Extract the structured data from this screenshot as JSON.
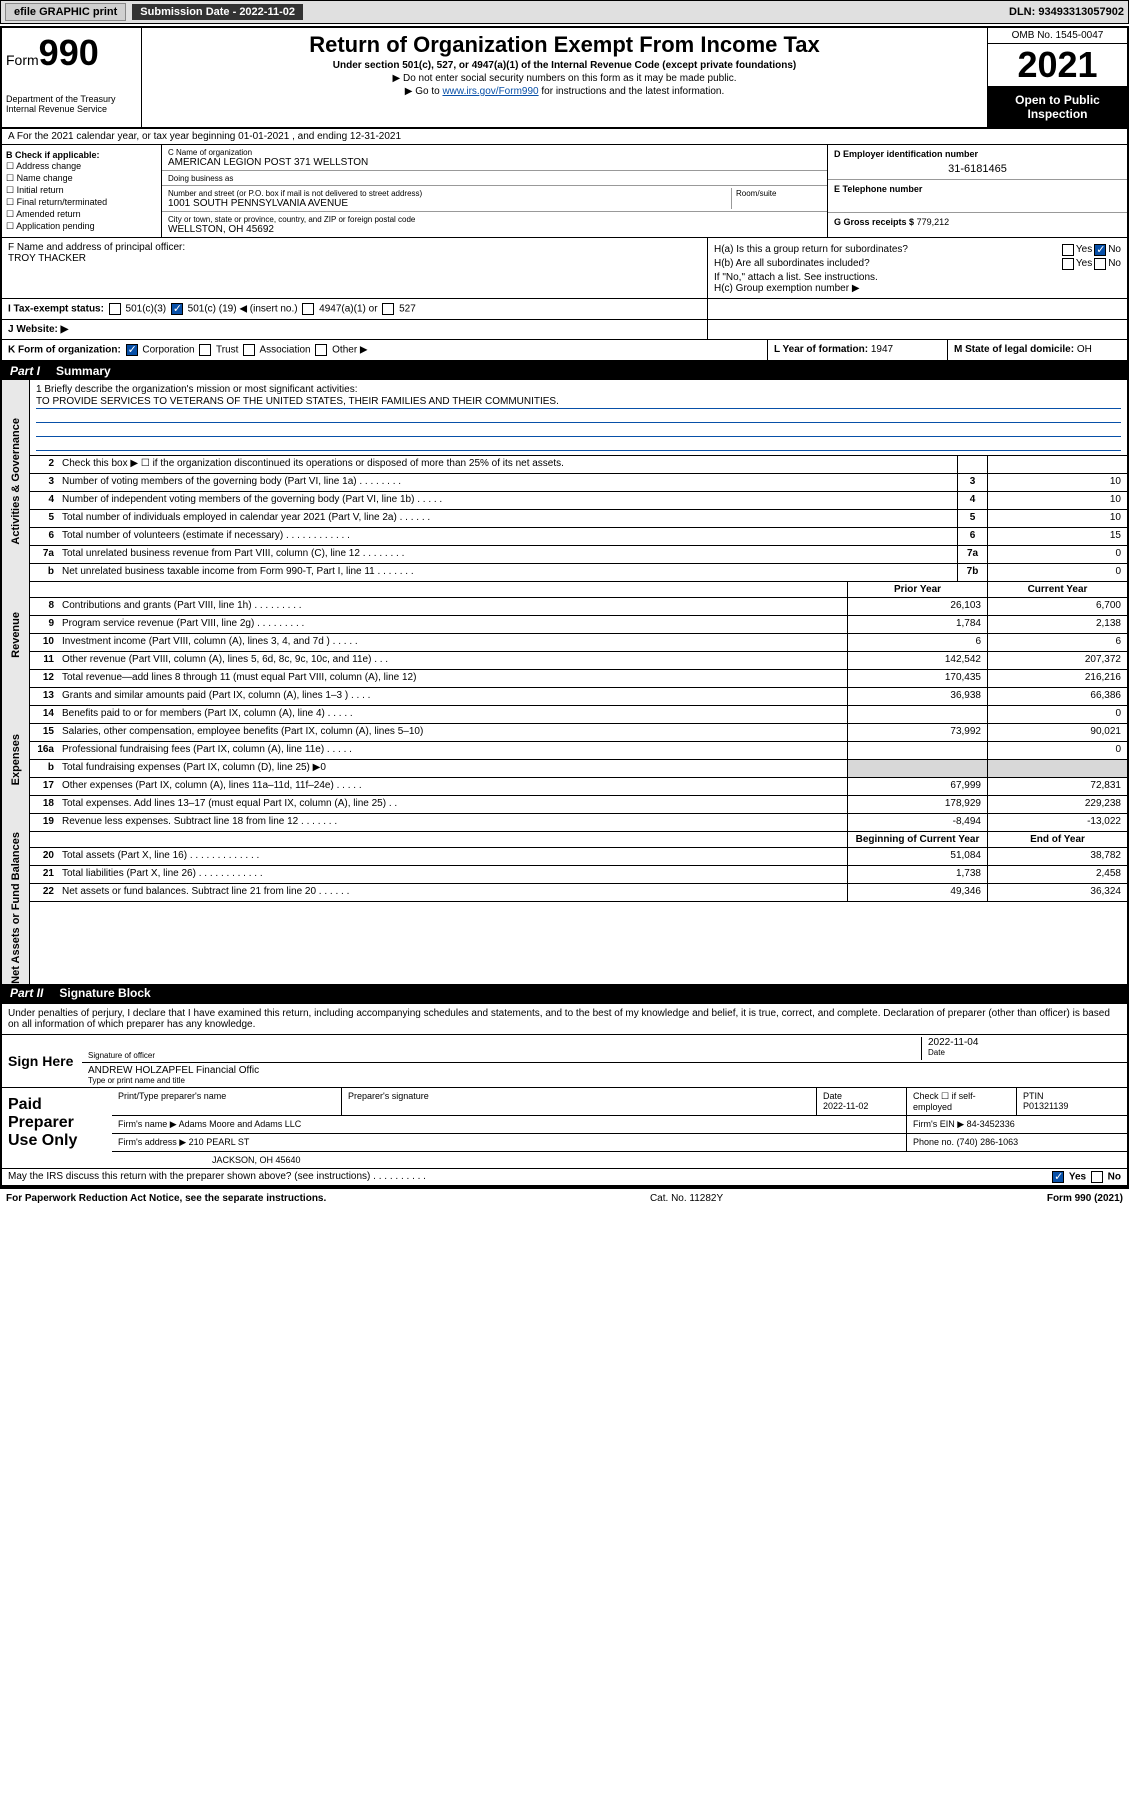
{
  "topbar": {
    "efile": "efile GRAPHIC print",
    "sub_label": "Submission Date - 2022-11-02",
    "dln": "DLN: 93493313057902"
  },
  "header": {
    "form_word": "Form",
    "form_num": "990",
    "dept": "Department of the Treasury",
    "irs": "Internal Revenue Service",
    "title": "Return of Organization Exempt From Income Tax",
    "subtitle": "Under section 501(c), 527, or 4947(a)(1) of the Internal Revenue Code (except private foundations)",
    "note1": "▶ Do not enter social security numbers on this form as it may be made public.",
    "note2_pre": "▶ Go to ",
    "note2_link": "www.irs.gov/Form990",
    "note2_post": " for instructions and the latest information.",
    "omb": "OMB No. 1545-0047",
    "year": "2021",
    "open": "Open to Public Inspection"
  },
  "a_line": "A For the 2021 calendar year, or tax year beginning 01-01-2021   , and ending 12-31-2021",
  "b": {
    "hdr": "B Check if applicable:",
    "items": [
      "Address change",
      "Name change",
      "Initial return",
      "Final return/terminated",
      "Amended return",
      "Application pending"
    ]
  },
  "c": {
    "name_lbl": "C Name of organization",
    "name": "AMERICAN LEGION POST 371 WELLSTON",
    "dba_lbl": "Doing business as",
    "addr_lbl": "Number and street (or P.O. box if mail is not delivered to street address)",
    "room_lbl": "Room/suite",
    "addr": "1001 SOUTH PENNSYLVANIA AVENUE",
    "city_lbl": "City or town, state or province, country, and ZIP or foreign postal code",
    "city": "WELLSTON, OH  45692"
  },
  "d": {
    "ein_lbl": "D Employer identification number",
    "ein": "31-6181465",
    "tel_lbl": "E Telephone number",
    "gross_lbl": "G Gross receipts $",
    "gross": "779,212"
  },
  "f": {
    "lbl": "F Name and address of principal officer:",
    "name": "TROY THACKER"
  },
  "h": {
    "a": "H(a)  Is this a group return for subordinates?",
    "b": "H(b)  Are all subordinates included?",
    "b_note": "If \"No,\" attach a list. See instructions.",
    "c": "H(c)  Group exemption number ▶",
    "yes": "Yes",
    "no": "No"
  },
  "i": {
    "lbl": "I   Tax-exempt status:",
    "o1": "501(c)(3)",
    "o2_pre": "501(c) (",
    "o2_num": "19",
    "o2_post": ") ◀ (insert no.)",
    "o3": "4947(a)(1) or",
    "o4": "527"
  },
  "j": {
    "lbl": "J   Website: ▶"
  },
  "k": {
    "lbl": "K Form of organization:",
    "o1": "Corporation",
    "o2": "Trust",
    "o3": "Association",
    "o4": "Other ▶",
    "l_lbl": "L Year of formation:",
    "l_val": "1947",
    "m_lbl": "M State of legal domicile:",
    "m_val": "OH"
  },
  "part1": {
    "num": "Part I",
    "title": "Summary"
  },
  "mission": {
    "prompt": "1   Briefly describe the organization's mission or most significant activities:",
    "text": "TO PROVIDE SERVICES TO VETERANS OF THE UNITED STATES, THEIR FAMILIES AND THEIR COMMUNITIES."
  },
  "side": {
    "gov": "Activities & Governance",
    "rev": "Revenue",
    "exp": "Expenses",
    "net": "Net Assets or Fund Balances"
  },
  "gov_lines": [
    {
      "n": "2",
      "d": "Check this box ▶ ☐  if the organization discontinued its operations or disposed of more than 25% of its net assets.",
      "box": "",
      "a1": "",
      "a2": ""
    },
    {
      "n": "3",
      "d": "Number of voting members of the governing body (Part VI, line 1a)   .    .    .    .    .    .    .    .",
      "box": "3",
      "a1": "",
      "a2": "10"
    },
    {
      "n": "4",
      "d": "Number of independent voting members of the governing body (Part VI, line 1b)   .    .    .    .    .",
      "box": "4",
      "a1": "",
      "a2": "10"
    },
    {
      "n": "5",
      "d": "Total number of individuals employed in calendar year 2021 (Part V, line 2a)   .    .    .    .    .    .",
      "box": "5",
      "a1": "",
      "a2": "10"
    },
    {
      "n": "6",
      "d": "Total number of volunteers (estimate if necessary)   .    .    .    .    .    .    .    .    .    .    .    .",
      "box": "6",
      "a1": "",
      "a2": "15"
    },
    {
      "n": "7a",
      "d": "Total unrelated business revenue from Part VIII, column (C), line 12   .    .    .    .    .    .    .    .",
      "box": "7a",
      "a1": "",
      "a2": "0"
    },
    {
      "n": "b",
      "d": "Net unrelated business taxable income from Form 990-T, Part I, line 11   .    .    .    .    .    .    .",
      "box": "7b",
      "a1": "",
      "a2": "0"
    }
  ],
  "col_hdrs": {
    "prior": "Prior Year",
    "current": "Current Year"
  },
  "rev_lines": [
    {
      "n": "8",
      "d": "Contributions and grants (Part VIII, line 1h)   .    .    .    .    .    .    .    .    .",
      "a1": "26,103",
      "a2": "6,700"
    },
    {
      "n": "9",
      "d": "Program service revenue (Part VIII, line 2g)   .    .    .    .    .    .    .    .    .",
      "a1": "1,784",
      "a2": "2,138"
    },
    {
      "n": "10",
      "d": "Investment income (Part VIII, column (A), lines 3, 4, and 7d )   .    .    .    .    .",
      "a1": "6",
      "a2": "6"
    },
    {
      "n": "11",
      "d": "Other revenue (Part VIII, column (A), lines 5, 6d, 8c, 9c, 10c, and 11e)   .    .    .",
      "a1": "142,542",
      "a2": "207,372"
    },
    {
      "n": "12",
      "d": "Total revenue—add lines 8 through 11 (must equal Part VIII, column (A), line 12)",
      "a1": "170,435",
      "a2": "216,216"
    }
  ],
  "exp_lines": [
    {
      "n": "13",
      "d": "Grants and similar amounts paid (Part IX, column (A), lines 1–3 )   .    .    .    .",
      "a1": "36,938",
      "a2": "66,386"
    },
    {
      "n": "14",
      "d": "Benefits paid to or for members (Part IX, column (A), line 4)   .    .    .    .    .",
      "a1": "",
      "a2": "0"
    },
    {
      "n": "15",
      "d": "Salaries, other compensation, employee benefits (Part IX, column (A), lines 5–10)",
      "a1": "73,992",
      "a2": "90,021"
    },
    {
      "n": "16a",
      "d": "Professional fundraising fees (Part IX, column (A), line 11e)   .    .    .    .    .",
      "a1": "",
      "a2": "0"
    },
    {
      "n": "b",
      "d": "Total fundraising expenses (Part IX, column (D), line 25) ▶0",
      "a1": "shade",
      "a2": "shade"
    },
    {
      "n": "17",
      "d": "Other expenses (Part IX, column (A), lines 11a–11d, 11f–24e)   .    .    .    .    .",
      "a1": "67,999",
      "a2": "72,831"
    },
    {
      "n": "18",
      "d": "Total expenses. Add lines 13–17 (must equal Part IX, column (A), line 25)   .    .",
      "a1": "178,929",
      "a2": "229,238"
    },
    {
      "n": "19",
      "d": "Revenue less expenses. Subtract line 18 from line 12   .    .    .    .    .    .    .",
      "a1": "-8,494",
      "a2": "-13,022"
    }
  ],
  "net_hdrs": {
    "beg": "Beginning of Current Year",
    "end": "End of Year"
  },
  "net_lines": [
    {
      "n": "20",
      "d": "Total assets (Part X, line 16)   .    .    .    .    .    .    .    .    .    .    .    .    .",
      "a1": "51,084",
      "a2": "38,782"
    },
    {
      "n": "21",
      "d": "Total liabilities (Part X, line 26)   .    .    .    .    .    .    .    .    .    .    .    .",
      "a1": "1,738",
      "a2": "2,458"
    },
    {
      "n": "22",
      "d": "Net assets or fund balances. Subtract line 21 from line 20   .    .    .    .    .    .",
      "a1": "49,346",
      "a2": "36,324"
    }
  ],
  "part2": {
    "num": "Part II",
    "title": "Signature Block"
  },
  "sig": {
    "intro": "Under penalties of perjury, I declare that I have examined this return, including accompanying schedules and statements, and to the best of my knowledge and belief, it is true, correct, and complete. Declaration of preparer (other than officer) is based on all information of which preparer has any knowledge.",
    "here": "Sign Here",
    "sig_lbl": "Signature of officer",
    "date_lbl": "Date",
    "date": "2022-11-04",
    "name": "ANDREW HOLZAPFEL Financial Offic",
    "name_lbl": "Type or print name and title"
  },
  "prep": {
    "label": "Paid Preparer Use Only",
    "h1": "Print/Type preparer's name",
    "h2": "Preparer's signature",
    "h3": "Date",
    "h3v": "2022-11-02",
    "h4": "Check ☐ if self-employed",
    "h5": "PTIN",
    "h5v": "P01321139",
    "firm_lbl": "Firm's name    ▶",
    "firm": "Adams Moore and Adams LLC",
    "fein_lbl": "Firm's EIN ▶",
    "fein": "84-3452336",
    "addr_lbl": "Firm's address ▶",
    "addr1": "210 PEARL ST",
    "addr2": "JACKSON, OH  45640",
    "phone_lbl": "Phone no.",
    "phone": "(740) 286-1063"
  },
  "footer": {
    "q": "May the IRS discuss this return with the preparer shown above? (see instructions)   .    .    .    .    .    .    .    .    .    .",
    "yes": "Yes",
    "no": "No"
  },
  "paperwork": {
    "l": "For Paperwork Reduction Act Notice, see the separate instructions.",
    "m": "Cat. No. 11282Y",
    "r": "Form 990 (2021)"
  }
}
